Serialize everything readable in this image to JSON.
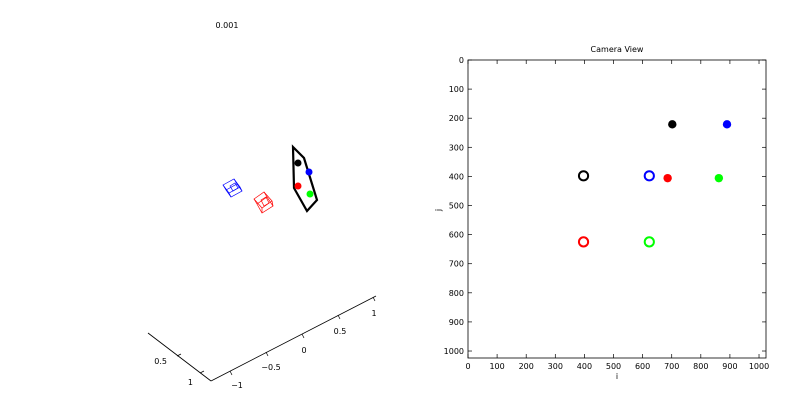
{
  "left_panel": {
    "label": "0.001",
    "axis_ticks": {
      "front_left": [
        "0.5",
        "1"
      ],
      "front_right": [
        "−1",
        "−0.5",
        "0",
        "0.5",
        "1"
      ]
    },
    "markers": [
      {
        "name": "black",
        "color": "#000000"
      },
      {
        "name": "blue",
        "color": "#0000ff"
      },
      {
        "name": "red",
        "color": "#ff0000"
      },
      {
        "name": "green",
        "color": "#00ff00"
      }
    ],
    "camera_colors": [
      "#0000ff",
      "#ff0000"
    ],
    "plane_color": "#000000"
  },
  "chart_data": {
    "type": "scatter",
    "title": "Camera View",
    "xlabel": "i",
    "ylabel": "j",
    "xlim": [
      0,
      1024
    ],
    "ylim": [
      1024,
      0
    ],
    "y_reversed": true,
    "xticks": [
      0,
      100,
      200,
      300,
      400,
      500,
      600,
      700,
      800,
      900,
      1000
    ],
    "yticks": [
      0,
      100,
      200,
      300,
      400,
      500,
      600,
      700,
      800,
      900,
      1000
    ],
    "grid": false,
    "series": [
      {
        "kind": "filled",
        "points": [
          {
            "x": 702,
            "y": 221,
            "color": "#000000"
          },
          {
            "x": 890,
            "y": 221,
            "color": "#0000ff"
          },
          {
            "x": 686,
            "y": 406,
            "color": "#ff0000"
          },
          {
            "x": 862,
            "y": 406,
            "color": "#00ff00"
          }
        ]
      },
      {
        "kind": "open",
        "points": [
          {
            "x": 397,
            "y": 398,
            "color": "#000000"
          },
          {
            "x": 623,
            "y": 398,
            "color": "#0000ff"
          },
          {
            "x": 397,
            "y": 625,
            "color": "#ff0000"
          },
          {
            "x": 623,
            "y": 625,
            "color": "#00ff00"
          }
        ]
      }
    ]
  }
}
